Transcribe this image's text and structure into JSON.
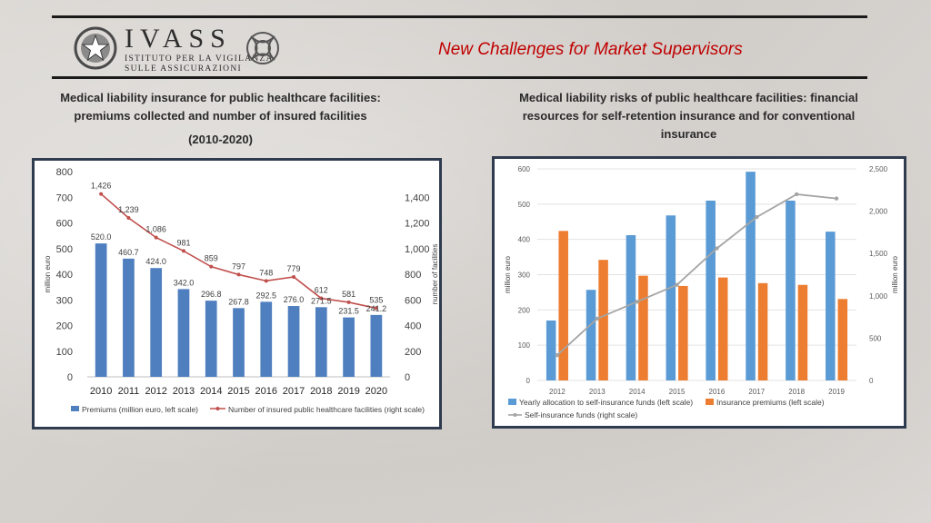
{
  "header": {
    "brand_name": "IVASS",
    "brand_line1": "ISTITUTO PER LA VIGILANZA",
    "brand_line2": "SULLE ASSICURAZIONI",
    "slide_title": "New Challenges for Market Supervisors"
  },
  "left_chart_heading": {
    "line1": "Medical liability insurance for public healthcare facilities:",
    "line2": "premiums collected and number of insured facilities",
    "period": "(2010-2020)"
  },
  "right_chart_heading": {
    "line1": "Medical liability risks of public healthcare facilities: financial",
    "line2": "resources for self-retention insurance and for conventional",
    "line3": "insurance"
  },
  "colors": {
    "accent_red": "#c00000",
    "bar_blue_left": "#4f7fbf",
    "line_red": "#c0504d",
    "bar_blue_right": "#5b9bd5",
    "bar_orange": "#ed7d31",
    "line_grey": "#a5a5a5",
    "panel_border": "#2f3b4e"
  },
  "chart_data": [
    {
      "type": "bar",
      "categories": [
        "2010",
        "2011",
        "2012",
        "2013",
        "2014",
        "2015",
        "2016",
        "2017",
        "2018",
        "2019",
        "2020"
      ],
      "series": [
        {
          "name": "Premiums (million euro, left scale)",
          "type": "bar",
          "axis": "left",
          "values": [
            520.0,
            460.7,
            424.0,
            342.0,
            296.8,
            267.8,
            292.5,
            276.0,
            271.5,
            231.5,
            241.2
          ],
          "labels": [
            "520.0",
            "460.7",
            "424.0",
            "342.0",
            "296.8",
            "267.8",
            "292.5",
            "276.0",
            "271.5",
            "231.5",
            "241.2"
          ]
        },
        {
          "name": "Number of insured public healthcare facilities (right scale)",
          "type": "line",
          "axis": "right",
          "values": [
            1426,
            1239,
            1086,
            981,
            859,
            797,
            748,
            779,
            612,
            581,
            535
          ],
          "labels": [
            "1,426",
            "1,239",
            "1,086",
            "981",
            "859",
            "797",
            "748",
            "779",
            "612",
            "581",
            "535"
          ]
        }
      ],
      "ylabel": "million euro",
      "y2label": "number of facilities",
      "ylim": [
        0,
        800
      ],
      "y2lim": [
        0,
        1600
      ],
      "yticks": [
        "0",
        "100",
        "200",
        "300",
        "400",
        "500",
        "600",
        "700",
        "800"
      ],
      "y2ticks": [
        "0",
        "200",
        "400",
        "600",
        "800",
        "1,000",
        "1,200",
        "1,400"
      ],
      "legend": "bottom",
      "grid": false
    },
    {
      "type": "bar",
      "categories": [
        "2012",
        "2013",
        "2014",
        "2015",
        "2016",
        "2017",
        "2018",
        "2019"
      ],
      "series": [
        {
          "name": "Yearly allocation to self-insurance funds (left scale)",
          "type": "bar",
          "axis": "left",
          "values": [
            170,
            257,
            412,
            468,
            510,
            592,
            510,
            422
          ]
        },
        {
          "name": "Insurance premiums (left scale)",
          "type": "bar",
          "axis": "left",
          "values": [
            424,
            342,
            297,
            268,
            292,
            276,
            271,
            231
          ]
        },
        {
          "name": "Self-insurance funds (right scale)",
          "type": "line",
          "axis": "right",
          "values": [
            300,
            730,
            930,
            1130,
            1560,
            1930,
            2200,
            2150
          ]
        }
      ],
      "ylabel": "million euro",
      "y2label": "million euro",
      "ylim": [
        0,
        600
      ],
      "y2lim": [
        0,
        2500
      ],
      "yticks": [
        "0",
        "100",
        "200",
        "300",
        "400",
        "500",
        "600"
      ],
      "y2ticks": [
        "0",
        "500",
        "1,000",
        "1,500",
        "2,000",
        "2,500"
      ],
      "legend": "bottom",
      "grid": true
    }
  ]
}
